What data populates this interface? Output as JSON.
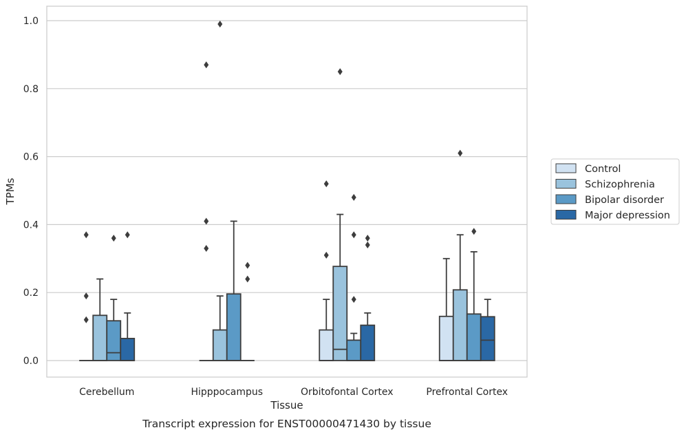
{
  "caption": "Transcript expression for ENST00000471430 by tissue",
  "chart_data": {
    "type": "box",
    "title": "",
    "xlabel": "Tissue",
    "ylabel": "TPMs",
    "ylim": [
      -0.048,
      1.04
    ],
    "yticks": [
      0.0,
      0.2,
      0.4,
      0.6,
      0.8,
      1.0
    ],
    "ytick_labels": [
      "0.0",
      "0.2",
      "0.4",
      "0.6",
      "0.8",
      "1.0"
    ],
    "grid": "horizontal",
    "legend_position": "right",
    "categories": [
      "Cerebellum",
      "Hipppocampus",
      "Orbitofontal Cortex",
      "Prefrontal Cortex"
    ],
    "series": [
      {
        "name": "Control",
        "color": "#d1e2f2",
        "boxes": [
          {
            "q1": 0,
            "median": 0,
            "q3": 0,
            "whisker_low": 0,
            "whisker_high": 0,
            "outliers": [
              0.12,
              0.19,
              0.37
            ]
          },
          {
            "q1": 0,
            "median": 0,
            "q3": 0,
            "whisker_low": 0,
            "whisker_high": 0,
            "outliers": [
              0.33,
              0.41,
              0.87
            ]
          },
          {
            "q1": 0,
            "median": 0,
            "q3": 0.09,
            "whisker_low": 0,
            "whisker_high": 0.18,
            "outliers": [
              0.31,
              0.52
            ]
          },
          {
            "q1": 0,
            "median": 0,
            "q3": 0.13,
            "whisker_low": 0,
            "whisker_high": 0.3,
            "outliers": []
          }
        ]
      },
      {
        "name": "Schizophrenia",
        "color": "#9ac3dd",
        "boxes": [
          {
            "q1": 0,
            "median": 0,
            "q3": 0.133,
            "whisker_low": 0,
            "whisker_high": 0.24,
            "outliers": []
          },
          {
            "q1": 0,
            "median": 0,
            "q3": 0.09,
            "whisker_low": 0,
            "whisker_high": 0.19,
            "outliers": [
              0.99
            ]
          },
          {
            "q1": 0,
            "median": 0.033,
            "q3": 0.277,
            "whisker_low": 0,
            "whisker_high": 0.43,
            "outliers": [
              0.85
            ]
          },
          {
            "q1": 0,
            "median": 0,
            "q3": 0.208,
            "whisker_low": 0,
            "whisker_high": 0.37,
            "outliers": [
              0.61
            ]
          }
        ]
      },
      {
        "name": "Bipolar disorder",
        "color": "#5b9ac6",
        "boxes": [
          {
            "q1": 0,
            "median": 0.023,
            "q3": 0.117,
            "whisker_low": 0,
            "whisker_high": 0.18,
            "outliers": [
              0.36
            ]
          },
          {
            "q1": 0,
            "median": 0,
            "q3": 0.196,
            "whisker_low": 0,
            "whisker_high": 0.41,
            "outliers": []
          },
          {
            "q1": 0,
            "median": 0,
            "q3": 0.06,
            "whisker_low": 0,
            "whisker_high": 0.08,
            "outliers": [
              0.18,
              0.37,
              0.48
            ]
          },
          {
            "q1": 0,
            "median": 0,
            "q3": 0.137,
            "whisker_low": 0,
            "whisker_high": 0.32,
            "outliers": [
              0.38
            ]
          }
        ]
      },
      {
        "name": "Major depression",
        "color": "#2a68a5",
        "boxes": [
          {
            "q1": 0,
            "median": 0,
            "q3": 0.065,
            "whisker_low": 0,
            "whisker_high": 0.14,
            "outliers": [
              0.37
            ]
          },
          {
            "q1": 0,
            "median": 0,
            "q3": 0,
            "whisker_low": 0,
            "whisker_high": 0,
            "outliers": [
              0.24,
              0.28
            ]
          },
          {
            "q1": 0,
            "median": 0,
            "q3": 0.104,
            "whisker_low": 0,
            "whisker_high": 0.14,
            "outliers": [
              0.34,
              0.36
            ]
          },
          {
            "q1": 0,
            "median": 0.06,
            "q3": 0.129,
            "whisker_low": 0,
            "whisker_high": 0.18,
            "outliers": []
          }
        ]
      }
    ]
  }
}
